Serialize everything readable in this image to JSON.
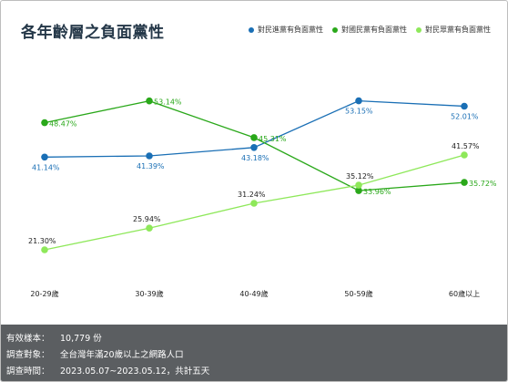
{
  "chart_data": {
    "type": "line",
    "title": "各年齡層之負面黨性",
    "categories": [
      "20-29歲",
      "30-39歲",
      "40-49歲",
      "50-59歲",
      "60歲以上"
    ],
    "series": [
      {
        "name": "對民進黨有負面黨性",
        "color": "#1a6fb5",
        "values": [
          41.14,
          41.39,
          43.18,
          53.15,
          52.01
        ],
        "labels": [
          "41.14%",
          "41.39%",
          "43.18%",
          "53.15%",
          "52.01%"
        ]
      },
      {
        "name": "對國民黨有負面黨性",
        "color": "#2aa81a",
        "values": [
          48.47,
          53.14,
          45.31,
          33.96,
          35.72
        ],
        "labels": [
          "48.47%",
          "53.14%",
          "45.31%",
          "33.96%",
          "35.72%"
        ]
      },
      {
        "name": "對民眾黨有負面黨性",
        "color": "#8ee85a",
        "values": [
          21.3,
          25.94,
          31.24,
          35.12,
          41.57
        ],
        "labels": [
          "21.30%",
          "25.94%",
          "31.24%",
          "35.12%",
          "41.57%"
        ]
      }
    ],
    "legend_position": "top-right",
    "grid": false
  },
  "footer": {
    "rows": [
      {
        "label": "有效樣本：",
        "value": "10,779 份"
      },
      {
        "label": "調查對象：",
        "value": "全台灣年滿20歲以上之網路人口"
      },
      {
        "label": "調查時間：",
        "value": "2023.05.07~2023.05.12，共計五天"
      }
    ]
  }
}
